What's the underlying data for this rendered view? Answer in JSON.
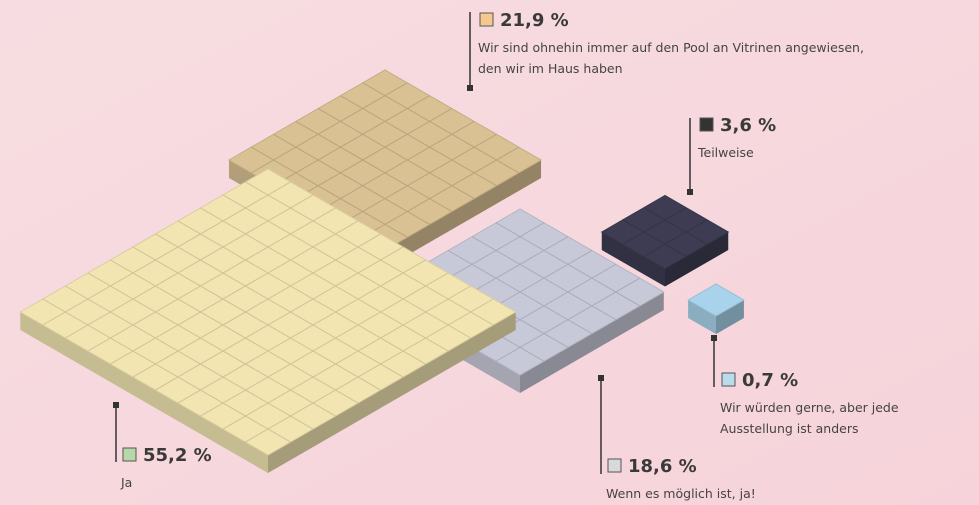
{
  "chart_data": {
    "type": "isometric-blocks",
    "categories": [
      "Wir sind ohnehin immer auf den Pool an Vitrinen angewiesen, den wir im Haus haben",
      "Teilweise",
      "Wir würden gerne, aber jede Ausstellung ist anders",
      "Ja",
      "Wenn es möglich ist, ja!"
    ],
    "values": [
      21.9,
      3.6,
      0.7,
      55.2,
      18.6
    ],
    "value_labels": [
      "21,9 %",
      "3,6 %",
      "0,7 %",
      "55,2 %",
      "18,6 %"
    ],
    "colors": [
      "#f5c88f",
      "#333333",
      "#b9dcec",
      "#b8d7a8",
      "#d9d9d9"
    ],
    "block_colors": [
      "#d9c193",
      "#3d3c52",
      "#a8d3ea",
      "#f2e5b2",
      "#c8c9d8"
    ]
  }
}
